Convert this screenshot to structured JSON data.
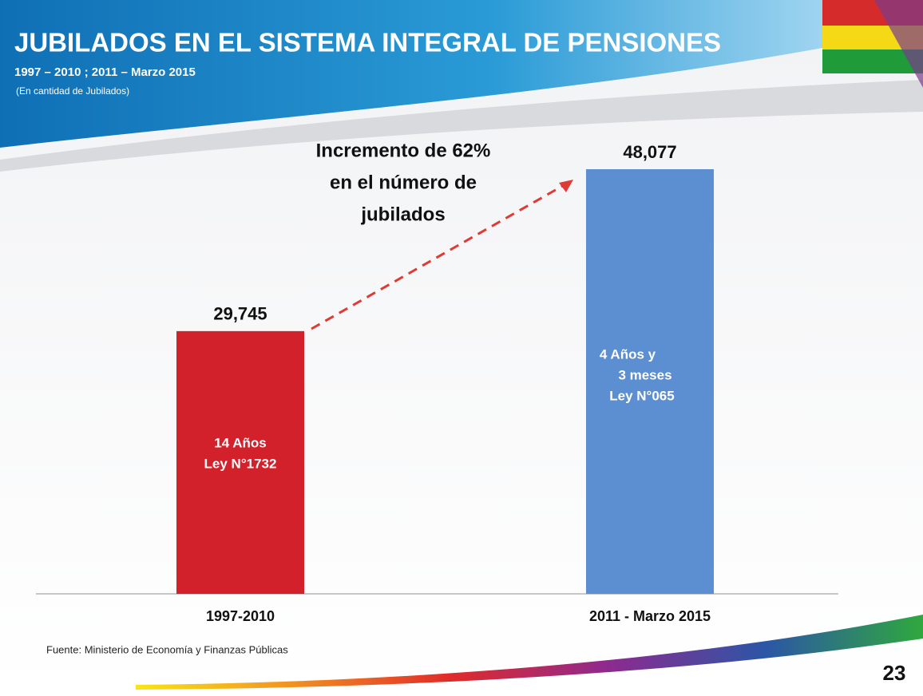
{
  "chart_data": {
    "type": "bar",
    "title": "JUBILADOS EN EL SISTEMA INTEGRAL DE PENSIONES",
    "subtitle": "1997 – 2010 ; 2011 – Marzo 2015",
    "unit_note": "(En cantidad de Jubilados)",
    "categories": [
      "1997-2010",
      "2011 - Marzo 2015"
    ],
    "values": [
      29745,
      48077
    ],
    "value_labels": [
      "29,745",
      "48,077"
    ],
    "colors": [
      "#d3212b",
      "#5b8fd1"
    ],
    "bar_notes": [
      [
        "14 Años",
        "Ley N°1732"
      ],
      [
        "4 Años y",
        "3 meses",
        "Ley N°065"
      ]
    ],
    "annotation": [
      "Incremento de 62%",
      "en el número de",
      "jubilados"
    ],
    "source": "Fuente: Ministerio de Economía y Finanzas Públicas",
    "page_number": "23"
  }
}
